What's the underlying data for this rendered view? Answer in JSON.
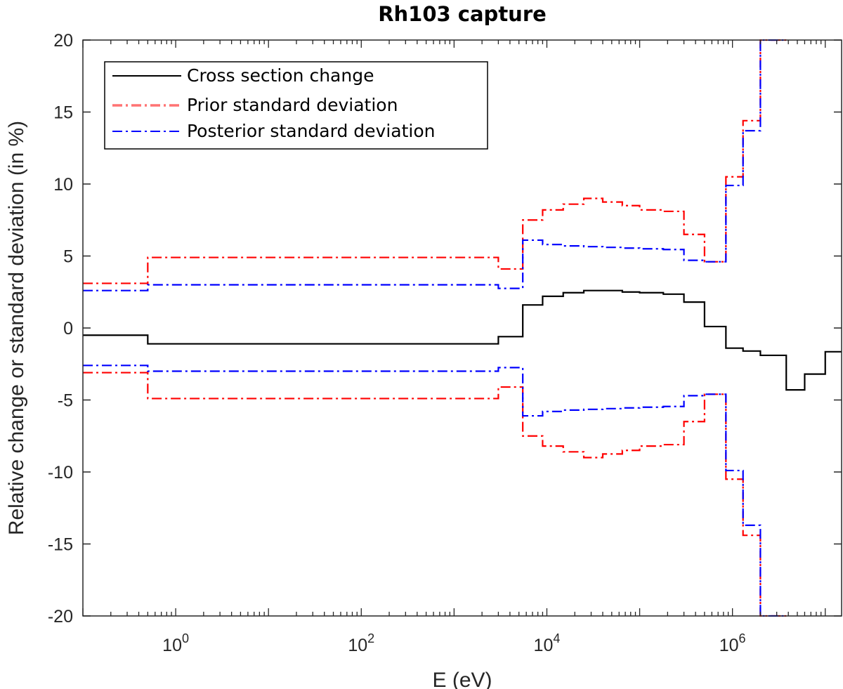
{
  "chart_data": {
    "type": "line",
    "title": "Rh103 capture",
    "xlabel": "E (eV)",
    "ylabel": "Relative change or standard deviation (in %)",
    "xscale": "log",
    "xlim": [
      0.1,
      15000000
    ],
    "ylim": [
      -20,
      20
    ],
    "xticks": [
      1,
      100,
      10000,
      1000000
    ],
    "xtick_labels": [
      {
        "base": "10",
        "exp": "0"
      },
      {
        "base": "10",
        "exp": "2"
      },
      {
        "base": "10",
        "exp": "4"
      },
      {
        "base": "10",
        "exp": "6"
      }
    ],
    "yticks": [
      -20,
      -15,
      -10,
      -5,
      0,
      5,
      10,
      15,
      20
    ],
    "ytick_labels": [
      "-20",
      "-15",
      "-10",
      "-5",
      "0",
      "5",
      "10",
      "15",
      "20"
    ],
    "grid": false,
    "legend_position": "top-left",
    "bin_edges": [
      0.1,
      0.5,
      3000,
      5500,
      9000,
      15000,
      25000,
      40000,
      65000,
      100000,
      180000,
      300000,
      500000,
      850000,
      1300000,
      2000000,
      3800000,
      6000000,
      10000000,
      15000000
    ],
    "series": [
      {
        "name": "Cross section change",
        "color": "#000000",
        "style": "solid",
        "values": [
          -0.5,
          -1.1,
          -0.6,
          1.6,
          2.2,
          2.45,
          2.6,
          2.6,
          2.5,
          2.45,
          2.35,
          1.8,
          0.1,
          -1.4,
          -1.6,
          -1.9,
          -4.3,
          -3.2,
          -1.65
        ]
      },
      {
        "name": "Prior standard deviation",
        "color": "#ff0000",
        "style": "dash-dot",
        "values": [
          3.1,
          4.9,
          4.1,
          7.5,
          8.2,
          8.6,
          9.0,
          8.75,
          8.5,
          8.2,
          8.1,
          6.5,
          4.6,
          10.5,
          14.4,
          20.0,
          null,
          null,
          null
        ]
      },
      {
        "name": "Posterior standard deviation",
        "color": "#0000ff",
        "style": "dash-dot",
        "values": [
          2.6,
          3.0,
          2.75,
          6.1,
          5.8,
          5.7,
          5.65,
          5.6,
          5.55,
          5.5,
          5.45,
          4.7,
          4.6,
          9.9,
          13.7,
          20.0,
          null,
          null,
          null
        ]
      }
    ],
    "symmetric_negative": [
      "Prior standard deviation",
      "Posterior standard deviation"
    ]
  }
}
